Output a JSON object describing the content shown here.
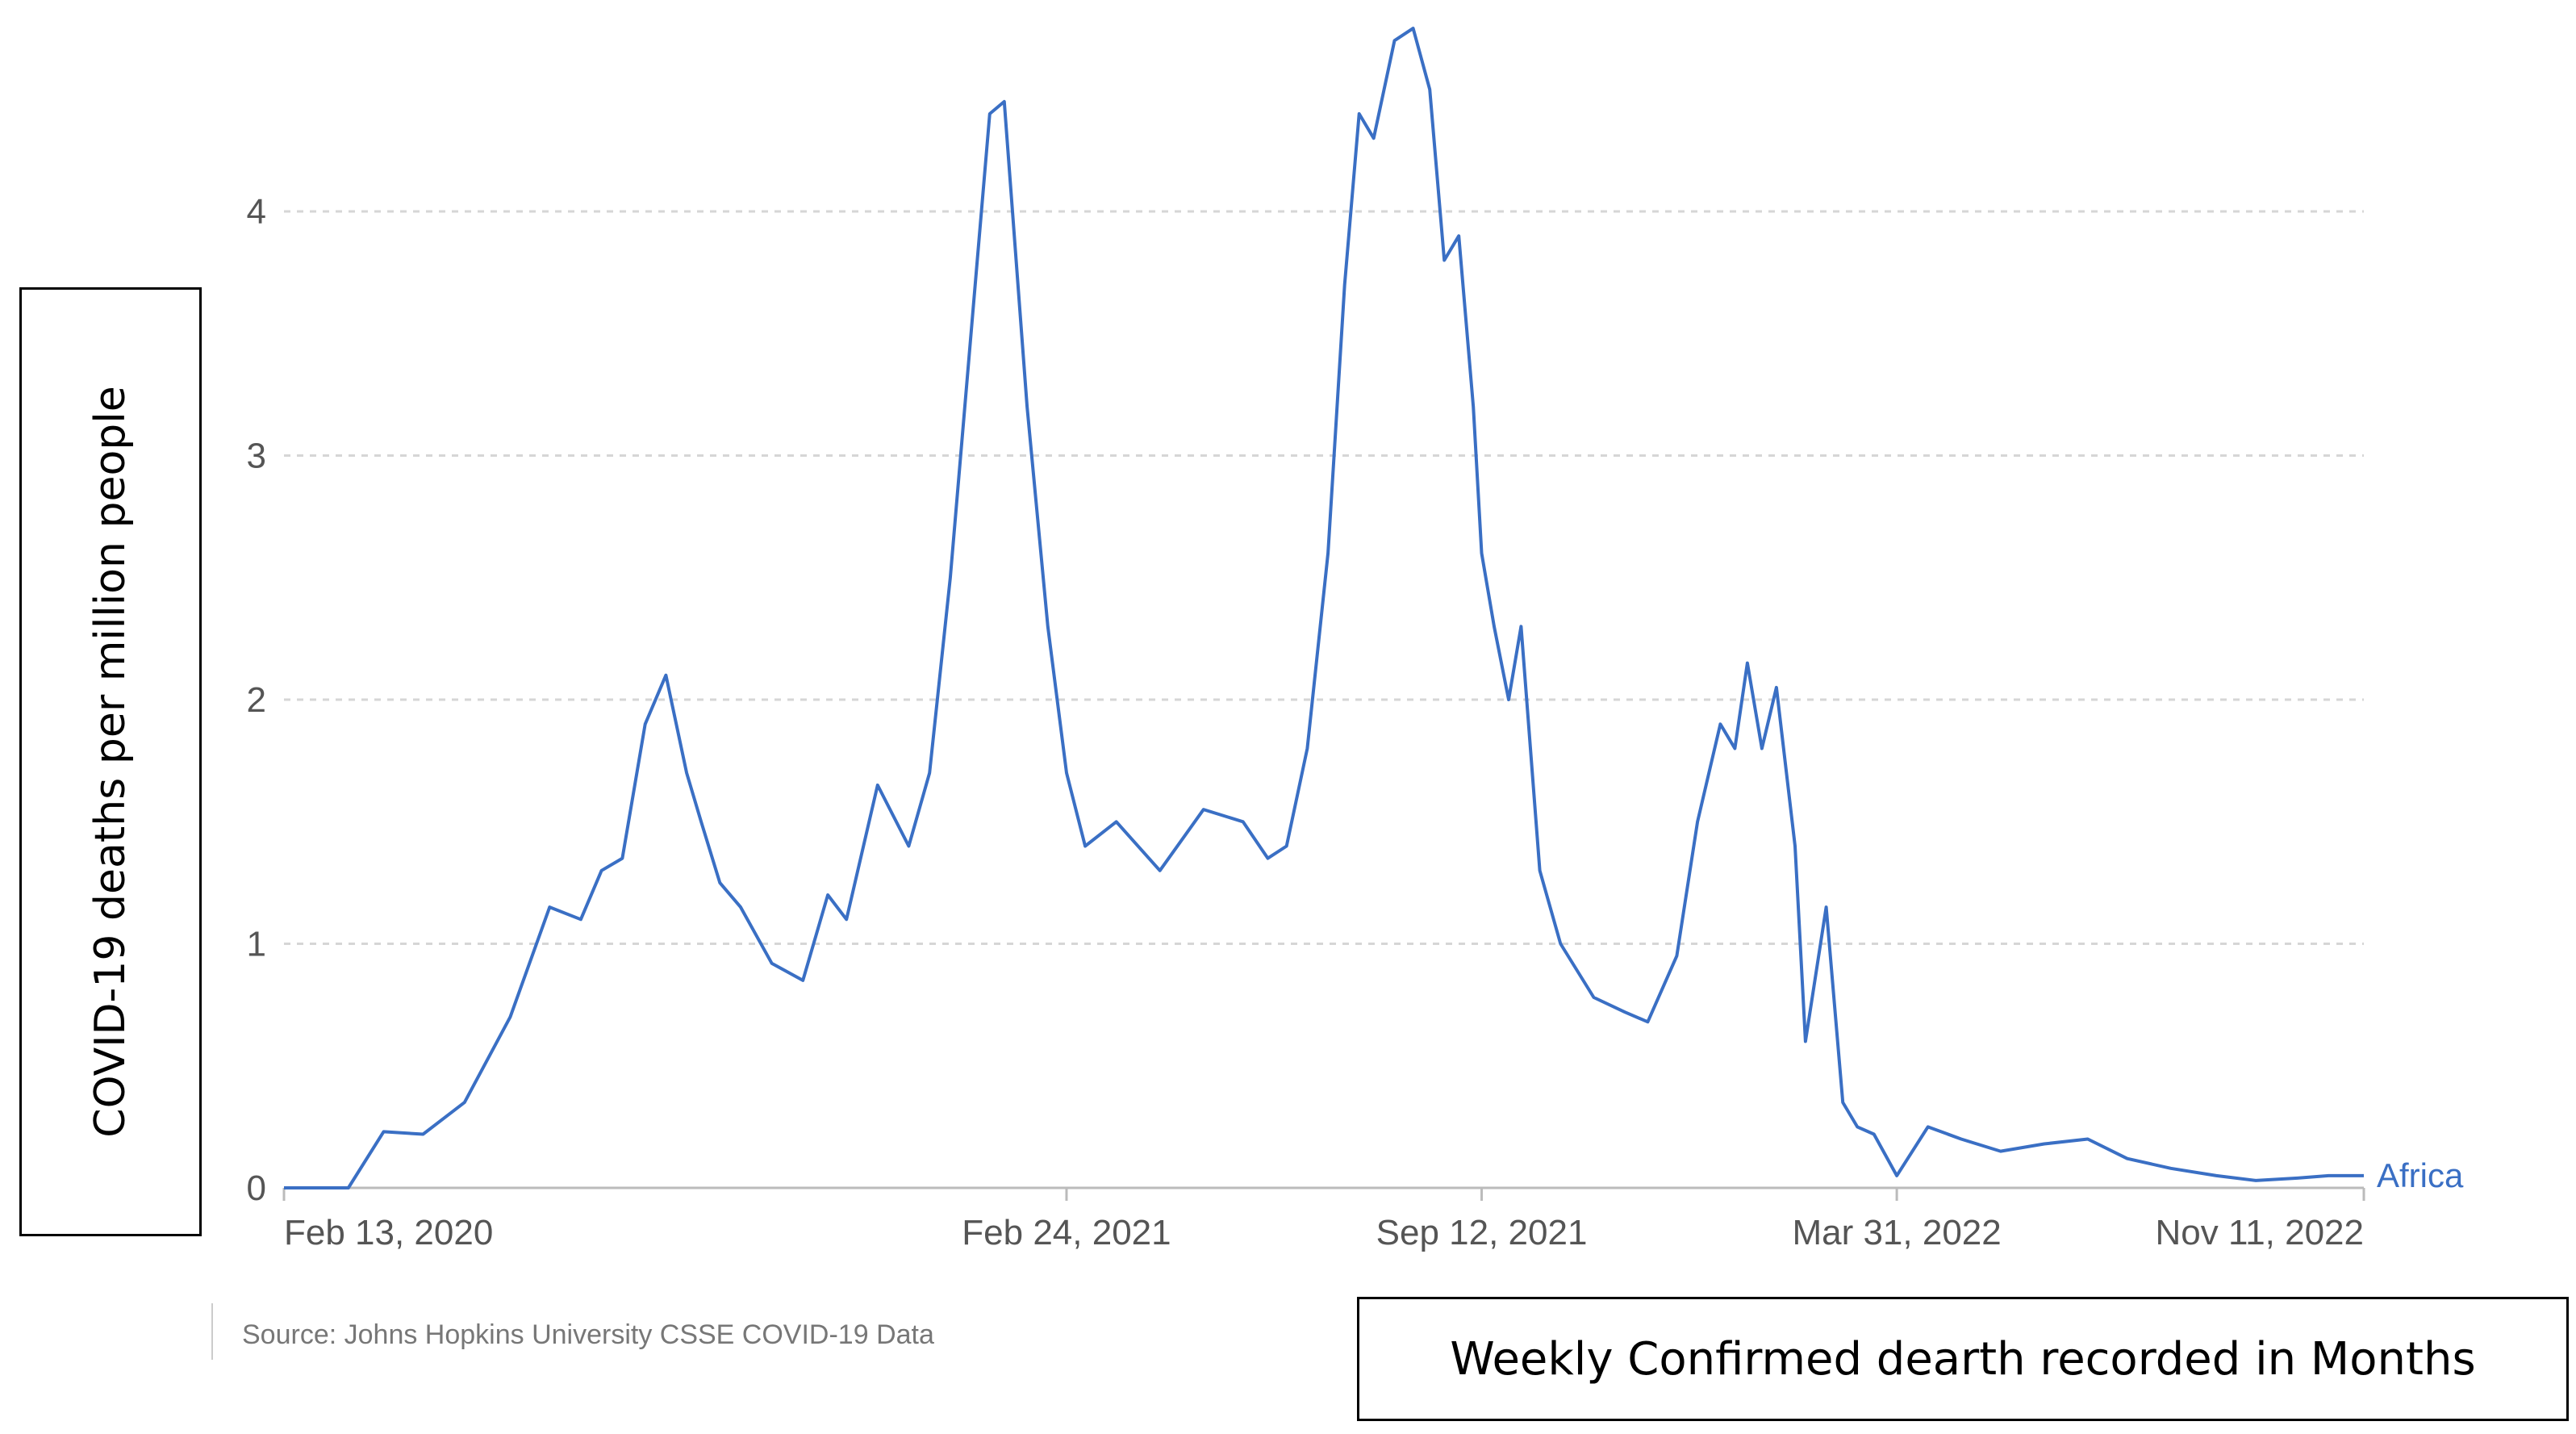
{
  "source": "Source: Johns Hopkins University CSSE COVID-19 Data",
  "colors": {
    "line": "#3a6fc4",
    "grid": "#d6d6d6",
    "axis": "#bbbbbb"
  },
  "chart_data": {
    "type": "line",
    "title": "",
    "xlabel": "Weekly Confirmed dearth recorded in Months",
    "ylabel": "COVID-19 deaths per million people",
    "ylim": [
      0,
      4.8
    ],
    "yticks": [
      0,
      1,
      2,
      3,
      4
    ],
    "xticks": [
      "2020-02-13",
      "2021-02-24",
      "2021-09-12",
      "2022-03-31",
      "2022-11-11"
    ],
    "xtick_labels": [
      "Feb 13, 2020",
      "Feb 24, 2021",
      "Sep 12, 2021",
      "Mar 31, 2022",
      "Nov 11, 2022"
    ],
    "grid": "horizontal dashed",
    "series": [
      {
        "name": "Africa",
        "x": [
          "2020-02-13",
          "2020-03-15",
          "2020-04-01",
          "2020-04-20",
          "2020-05-10",
          "2020-06-01",
          "2020-06-20",
          "2020-07-05",
          "2020-07-15",
          "2020-07-25",
          "2020-08-05",
          "2020-08-15",
          "2020-08-25",
          "2020-09-01",
          "2020-09-10",
          "2020-09-20",
          "2020-10-05",
          "2020-10-20",
          "2020-11-01",
          "2020-11-10",
          "2020-11-25",
          "2020-12-10",
          "2020-12-20",
          "2020-12-30",
          "2021-01-10",
          "2021-01-18",
          "2021-01-25",
          "2021-02-05",
          "2021-02-15",
          "2021-02-24",
          "2021-03-05",
          "2021-03-20",
          "2021-04-10",
          "2021-05-01",
          "2021-05-20",
          "2021-06-01",
          "2021-06-10",
          "2021-06-20",
          "2021-06-30",
          "2021-07-08",
          "2021-07-15",
          "2021-07-22",
          "2021-08-01",
          "2021-08-10",
          "2021-08-18",
          "2021-08-25",
          "2021-09-01",
          "2021-09-08",
          "2021-09-12",
          "2021-09-18",
          "2021-09-25",
          "2021-10-01",
          "2021-10-10",
          "2021-10-20",
          "2021-11-05",
          "2021-11-20",
          "2021-12-01",
          "2021-12-15",
          "2021-12-25",
          "2022-01-05",
          "2022-01-12",
          "2022-01-18",
          "2022-01-25",
          "2022-02-01",
          "2022-02-10",
          "2022-02-15",
          "2022-02-25",
          "2022-03-05",
          "2022-03-12",
          "2022-03-20",
          "2022-03-31",
          "2022-04-15",
          "2022-05-01",
          "2022-05-20",
          "2022-06-10",
          "2022-07-01",
          "2022-07-20",
          "2022-08-10",
          "2022-09-01",
          "2022-09-20",
          "2022-10-10",
          "2022-10-25",
          "2022-11-11"
        ],
        "values": [
          0,
          0,
          0.23,
          0.22,
          0.35,
          0.7,
          1.15,
          1.1,
          1.3,
          1.35,
          1.9,
          2.1,
          1.7,
          1.5,
          1.25,
          1.15,
          0.92,
          0.85,
          1.2,
          1.1,
          1.65,
          1.4,
          1.7,
          2.5,
          3.6,
          4.4,
          4.45,
          3.2,
          2.3,
          1.7,
          1.4,
          1.5,
          1.3,
          1.55,
          1.5,
          1.35,
          1.4,
          1.8,
          2.6,
          3.7,
          4.4,
          4.3,
          4.7,
          4.75,
          4.5,
          3.8,
          3.9,
          3.2,
          2.6,
          2.3,
          2.0,
          2.3,
          1.3,
          1.0,
          0.78,
          0.72,
          0.68,
          0.95,
          1.5,
          1.9,
          1.8,
          2.15,
          1.8,
          2.05,
          1.4,
          0.6,
          1.15,
          0.35,
          0.25,
          0.22,
          0.05,
          0.25,
          0.2,
          0.15,
          0.18,
          0.2,
          0.12,
          0.08,
          0.05,
          0.03,
          0.04,
          0.05,
          0.05
        ]
      }
    ]
  }
}
